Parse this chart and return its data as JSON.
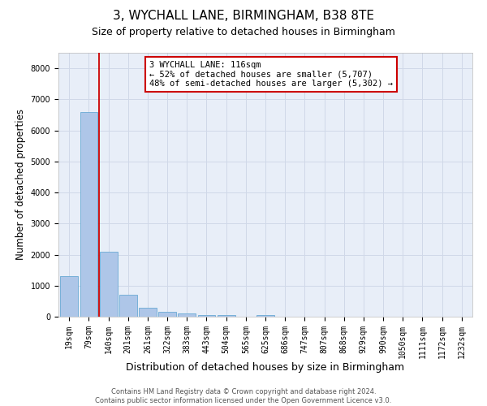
{
  "title": "3, WYCHALL LANE, BIRMINGHAM, B38 8TE",
  "subtitle": "Size of property relative to detached houses in Birmingham",
  "xlabel": "Distribution of detached houses by size in Birmingham",
  "ylabel": "Number of detached properties",
  "footer_line1": "Contains HM Land Registry data © Crown copyright and database right 2024.",
  "footer_line2": "Contains public sector information licensed under the Open Government Licence v3.0.",
  "bar_labels": [
    "19sqm",
    "79sqm",
    "140sqm",
    "201sqm",
    "261sqm",
    "322sqm",
    "383sqm",
    "443sqm",
    "504sqm",
    "565sqm",
    "625sqm",
    "686sqm",
    "747sqm",
    "807sqm",
    "868sqm",
    "929sqm",
    "990sqm",
    "1050sqm",
    "1111sqm",
    "1172sqm",
    "1232sqm"
  ],
  "bar_values": [
    1300,
    6600,
    2080,
    700,
    290,
    150,
    100,
    60,
    60,
    0,
    60,
    0,
    0,
    0,
    0,
    0,
    0,
    0,
    0,
    0,
    0
  ],
  "bar_color": "#aec6e8",
  "bar_edge_color": "#6aaad4",
  "ylim": [
    0,
    8500
  ],
  "yticks": [
    0,
    1000,
    2000,
    3000,
    4000,
    5000,
    6000,
    7000,
    8000
  ],
  "property_line_x": 1.5,
  "annotation_title": "3 WYCHALL LANE: 116sqm",
  "annotation_line1": "← 52% of detached houses are smaller (5,707)",
  "annotation_line2": "48% of semi-detached houses are larger (5,302) →",
  "annotation_box_color": "#ffffff",
  "annotation_box_edgecolor": "#cc0000",
  "vline_color": "#cc0000",
  "grid_color": "#d0d8e8",
  "bg_color": "#e8eef8",
  "title_fontsize": 11,
  "subtitle_fontsize": 9,
  "xlabel_fontsize": 9,
  "ylabel_fontsize": 8.5,
  "tick_fontsize": 7,
  "annotation_fontsize": 7.5,
  "footer_fontsize": 6
}
